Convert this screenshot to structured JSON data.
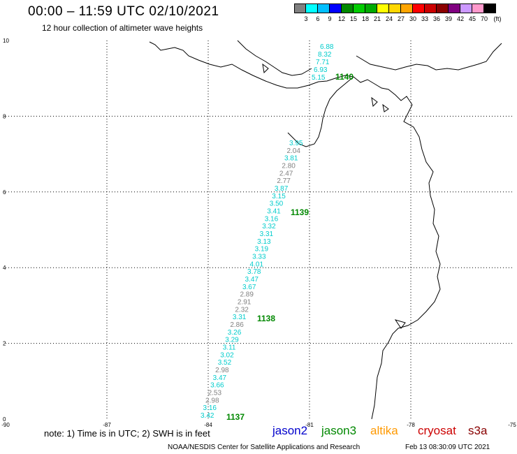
{
  "header": {
    "title": "00:00 – 11:59 UTC 02/10/2021",
    "subtitle": "12 hour collection of altimeter wave heights"
  },
  "legend": {
    "unit": "(ft)",
    "ticks": [
      "3",
      "6",
      "9",
      "12",
      "15",
      "18",
      "21",
      "24",
      "27",
      "30",
      "33",
      "36",
      "39",
      "42",
      "45",
      "70"
    ],
    "colors": [
      "#808080",
      "#00ffff",
      "#00bfff",
      "#0000ff",
      "#008800",
      "#00cc00",
      "#00aa00",
      "#ffff00",
      "#ffd700",
      "#ffa500",
      "#ff0000",
      "#cc0000",
      "#8b0000",
      "#800080",
      "#cc99ff",
      "#ff99cc",
      "#000000"
    ]
  },
  "axes": {
    "x_ticks": [
      "-90",
      "-87",
      "-84",
      "-81",
      "-78",
      "-75"
    ],
    "y_ticks": [
      "0",
      "2",
      "4",
      "6",
      "8",
      "10"
    ]
  },
  "passes": [
    {
      "label": "1137",
      "color": "#008800"
    },
    {
      "label": "1138",
      "color": "#008800"
    },
    {
      "label": "1139",
      "color": "#008800"
    },
    {
      "label": "1140",
      "color": "#008800"
    }
  ],
  "wave_heights": [
    {
      "v": "6.88",
      "c": "#00cccc"
    },
    {
      "v": "8.32",
      "c": "#00cccc"
    },
    {
      "v": "7.71",
      "c": "#00cccc"
    },
    {
      "v": "6.93",
      "c": "#00cccc"
    },
    {
      "v": "5.15",
      "c": "#00cccc"
    },
    {
      "v": "3.95",
      "c": "#00cccc"
    },
    {
      "v": "2.04",
      "c": "#808080"
    },
    {
      "v": "3.81",
      "c": "#00cccc"
    },
    {
      "v": "2.80",
      "c": "#808080"
    },
    {
      "v": "2.47",
      "c": "#808080"
    },
    {
      "v": "2.77",
      "c": "#808080"
    },
    {
      "v": "3.87",
      "c": "#00cccc"
    },
    {
      "v": "3.15",
      "c": "#00cccc"
    },
    {
      "v": "3.50",
      "c": "#00cccc"
    },
    {
      "v": "3.41",
      "c": "#00cccc"
    },
    {
      "v": "3.16",
      "c": "#00cccc"
    },
    {
      "v": "3.32",
      "c": "#00cccc"
    },
    {
      "v": "3.31",
      "c": "#00cccc"
    },
    {
      "v": "3.13",
      "c": "#00cccc"
    },
    {
      "v": "3.19",
      "c": "#00cccc"
    },
    {
      "v": "3.33",
      "c": "#00cccc"
    },
    {
      "v": "4.01",
      "c": "#00cccc"
    },
    {
      "v": "3.78",
      "c": "#00cccc"
    },
    {
      "v": "3.47",
      "c": "#00cccc"
    },
    {
      "v": "3.67",
      "c": "#00cccc"
    },
    {
      "v": "2.89",
      "c": "#808080"
    },
    {
      "v": "2.91",
      "c": "#808080"
    },
    {
      "v": "2.32",
      "c": "#808080"
    },
    {
      "v": "3.31",
      "c": "#00cccc"
    },
    {
      "v": "2.86",
      "c": "#808080"
    },
    {
      "v": "3.26",
      "c": "#00cccc"
    },
    {
      "v": "3.29",
      "c": "#00cccc"
    },
    {
      "v": "3.11",
      "c": "#00cccc"
    },
    {
      "v": "3.02",
      "c": "#00cccc"
    },
    {
      "v": "3.52",
      "c": "#00cccc"
    },
    {
      "v": "2.98",
      "c": "#808080"
    },
    {
      "v": "3.47",
      "c": "#00cccc"
    },
    {
      "v": "3.66",
      "c": "#00cccc"
    },
    {
      "v": "2.53",
      "c": "#808080"
    },
    {
      "v": "2.98",
      "c": "#808080"
    },
    {
      "v": "3.16",
      "c": "#00cccc"
    },
    {
      "v": "3.42",
      "c": "#00cccc"
    }
  ],
  "footer": {
    "note": "note:  1) Time is in UTC;  2) SWH is in feet",
    "satellites": [
      {
        "name": "jason2",
        "color": "#0000cc"
      },
      {
        "name": "jason3",
        "color": "#008800"
      },
      {
        "name": "altika",
        "color": "#ff9900"
      },
      {
        "name": "cryosat",
        "color": "#cc0000"
      },
      {
        "name": "s3a",
        "color": "#880000"
      }
    ],
    "credit": "NOAA/NESDIS Center for Satellite Applications and Research",
    "timestamp": "Feb 13 08:30:09 UTC 2021"
  }
}
